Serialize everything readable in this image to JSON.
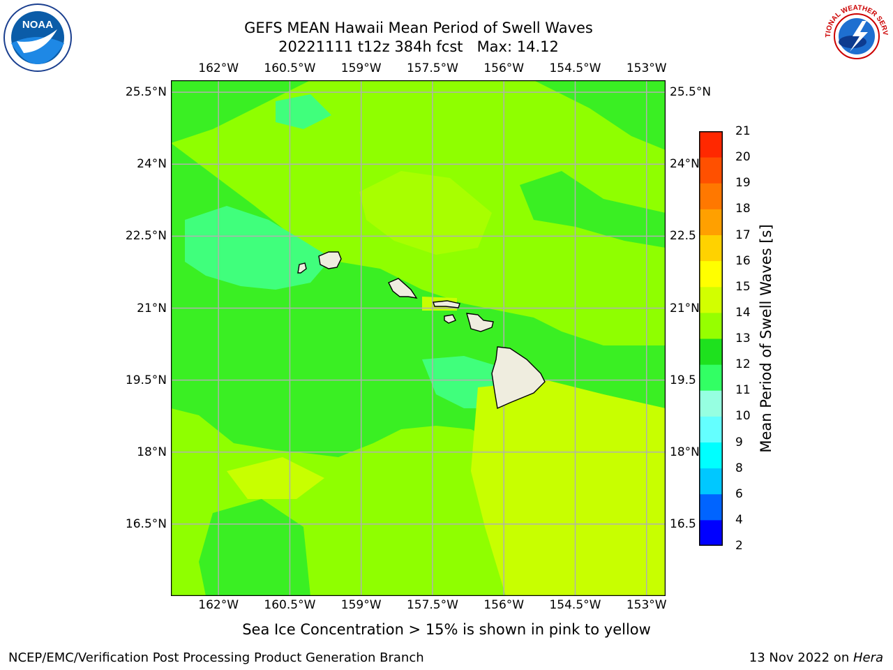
{
  "title": {
    "line1": "GEFS MEAN Hawaii Mean Period of Swell Waves",
    "line2": "20221111 t12z 384h fcst   Max: 14.12"
  },
  "axes": {
    "lon_labels": [
      "162°W",
      "160.5°W",
      "159°W",
      "157.5°W",
      "156°W",
      "154.5°W",
      "153°W"
    ],
    "lon_values": [
      -162,
      -160.5,
      -159,
      -157.5,
      -156,
      -154.5,
      -153
    ],
    "lat_labels_left": [
      "25.5°N",
      "24°N",
      "22.5°N",
      "21°N",
      "19.5°N",
      "18°N",
      "16.5°N"
    ],
    "lat_labels_right": [
      "25.5°N",
      "24°N",
      "22.5",
      "21°N",
      "19.5",
      "18°N",
      "16.5"
    ],
    "lat_values": [
      25.5,
      24,
      22.5,
      21,
      19.5,
      18,
      16.5
    ],
    "lon_range": [
      -163,
      -152.6
    ],
    "lat_range": [
      15,
      25.75
    ],
    "grid": true
  },
  "colorbar": {
    "label": "Mean Period of Swell Waves [s]",
    "ticks": [
      "21",
      "20",
      "19",
      "18",
      "17",
      "16",
      "15",
      "14",
      "13",
      "12",
      "11",
      "10",
      "9",
      "8",
      "6",
      "4",
      "2"
    ],
    "levels": [
      2,
      4,
      6,
      8,
      9,
      10,
      11,
      12,
      13,
      14,
      15,
      16,
      17,
      18,
      19,
      20,
      21
    ],
    "colors": [
      "#0000ff",
      "#0064ff",
      "#00c8ff",
      "#00ffff",
      "#64ffff",
      "#96ffe1",
      "#32ff64",
      "#1ee11e",
      "#96ff00",
      "#d2ff00",
      "#ffff00",
      "#ffd200",
      "#ffa000",
      "#ff7800",
      "#ff5000",
      "#ff2800",
      "#ff0000"
    ]
  },
  "colors": {
    "land": "#efeddf",
    "grid": "#b0b0b0",
    "field_main": "#8fff00",
    "field_dark": "#3aef23",
    "field_cyan": "#40ff7c",
    "field_yellow": "#c8ff00"
  },
  "logos": {
    "left": "NOAA",
    "right": "NATIONAL WEATHER SERVICE"
  },
  "note": "Sea Ice Concentration > 15% is shown in pink to yellow",
  "footer": {
    "left": "NCEP/EMC/Verification Post Processing Product Generation Branch",
    "right_prefix": "13 Nov 2022 on ",
    "right_host": "Hera"
  }
}
